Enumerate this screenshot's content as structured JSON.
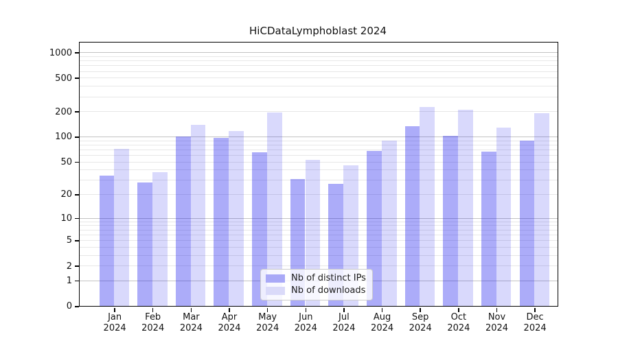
{
  "figure": {
    "title": "HiCDataLymphoblast 2024"
  },
  "legend": {
    "items": [
      {
        "label": "Nb of distinct IPs",
        "swatch_color": "#a9a9f7"
      },
      {
        "label": "Nb of downloads",
        "swatch_color": "#dadaf9"
      }
    ]
  },
  "colors": {
    "bar_distinct_ips": "rgba(15,15,238,0.345)",
    "bar_downloads": "rgba(15,15,238,0.155)",
    "grid_major": "#c3c3c3",
    "grid_minor": "#e7e7e7",
    "spine": "#000000"
  },
  "chart_data": {
    "type": "bar",
    "title": "HiCDataLymphoblast 2024",
    "categories": [
      "Jan 2024",
      "Feb 2024",
      "Mar 2024",
      "Apr 2024",
      "May 2024",
      "Jun 2024",
      "Jul 2024",
      "Aug 2024",
      "Sep 2024",
      "Oct 2024",
      "Nov 2024",
      "Dec 2024"
    ],
    "x_tick_months": [
      "Jan",
      "Feb",
      "Mar",
      "Apr",
      "May",
      "Jun",
      "Jul",
      "Aug",
      "Sep",
      "Oct",
      "Nov",
      "Dec"
    ],
    "x_tick_year": "2024",
    "series": [
      {
        "name": "Nb of distinct IPs",
        "values": [
          34,
          28,
          101,
          97,
          65,
          31,
          27,
          67,
          132,
          103,
          66,
          89
        ]
      },
      {
        "name": "Nb of downloads",
        "values": [
          71,
          37,
          139,
          117,
          192,
          53,
          45,
          90,
          225,
          207,
          127,
          191
        ]
      }
    ],
    "xlabel": "",
    "ylabel": "",
    "y_scale": "log10(value+1)",
    "ylim": [
      0,
      1300
    ],
    "y_ticks": [
      1000,
      500,
      200,
      100,
      50,
      20,
      10,
      5,
      2,
      1,
      0
    ],
    "y_major_gridlines": [
      1,
      10,
      100,
      1000
    ],
    "y_minor_gridlines": [
      2,
      3,
      4,
      5,
      6,
      7,
      8,
      9,
      20,
      30,
      40,
      50,
      60,
      70,
      80,
      90,
      200,
      300,
      400,
      500,
      600,
      700,
      800,
      900
    ],
    "grid": true,
    "legend_position": "bottom-center"
  }
}
